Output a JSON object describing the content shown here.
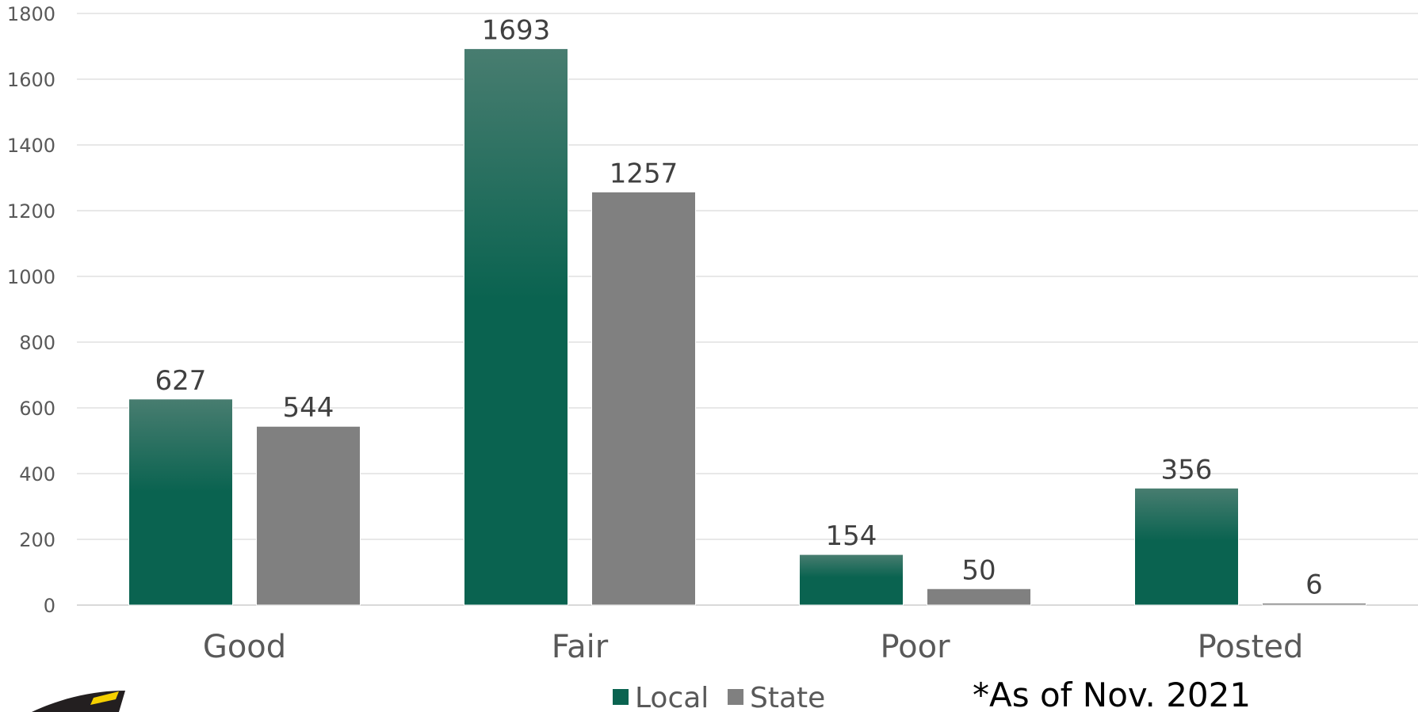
{
  "chart_data": {
    "type": "bar",
    "categories": [
      "Good",
      "Fair",
      "Poor",
      "Posted"
    ],
    "series": [
      {
        "name": "Local",
        "values": [
          627,
          1693,
          154,
          356
        ],
        "color": "#0a6350",
        "color_top": "#487d70"
      },
      {
        "name": "State",
        "values": [
          544,
          1257,
          50,
          6
        ],
        "color": "#808080"
      }
    ],
    "ylim": [
      0,
      1800
    ],
    "yticks": [
      0,
      200,
      400,
      600,
      800,
      1000,
      1200,
      1400,
      1600,
      1800
    ],
    "grid": true,
    "legend_position": "bottom",
    "annotation": "*As of Nov. 2021",
    "gridline_color": "#d9d9d9",
    "logo_color": "#231f20",
    "logo_accent_color": "#f5d000"
  }
}
